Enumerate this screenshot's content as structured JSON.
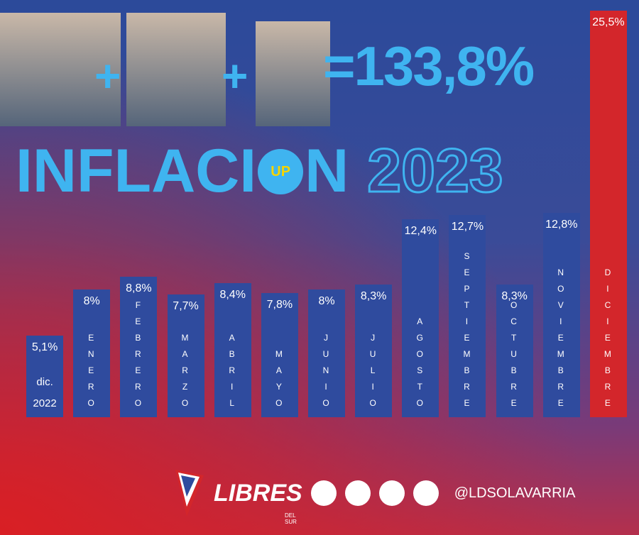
{
  "chart_data": {
    "type": "bar",
    "headline": {
      "total": "=133,8%",
      "title_start": "INFLACI",
      "badge": "UP",
      "title_end": "N",
      "year": "2023"
    },
    "categories": [
      "dic. 2022",
      "ENERO",
      "FEBRERO",
      "MARZO",
      "ABRIL",
      "MAYO",
      "JUNIO",
      "JULIO",
      "AGOSTO",
      "SEPTIEMBRE",
      "OCTUBRE",
      "NOVIEMBRE",
      "DICIEMBRE"
    ],
    "values": [
      5.1,
      8,
      8.8,
      7.7,
      8.4,
      7.8,
      8,
      8.3,
      12.4,
      12.7,
      8.3,
      12.8,
      25.5
    ],
    "value_labels": [
      "5,1%",
      "8%",
      "8,8%",
      "7,7%",
      "8,4%",
      "7,8%",
      "8%",
      "8,3%",
      "12,4%",
      "12,7%",
      "8,3%",
      "12,8%",
      "25,5%"
    ],
    "colors": [
      "#2f4b9e",
      "#2f4b9e",
      "#2f4b9e",
      "#2f4b9e",
      "#2f4b9e",
      "#2f4b9e",
      "#2f4b9e",
      "#2f4b9e",
      "#2f4b9e",
      "#2f4b9e",
      "#2f4b9e",
      "#2f4b9e",
      "#d3262b"
    ],
    "footer": {
      "brand": "LIBRES",
      "brand_sub": "DEL SUR",
      "handle": "@LDSOLAVARRIA"
    }
  }
}
